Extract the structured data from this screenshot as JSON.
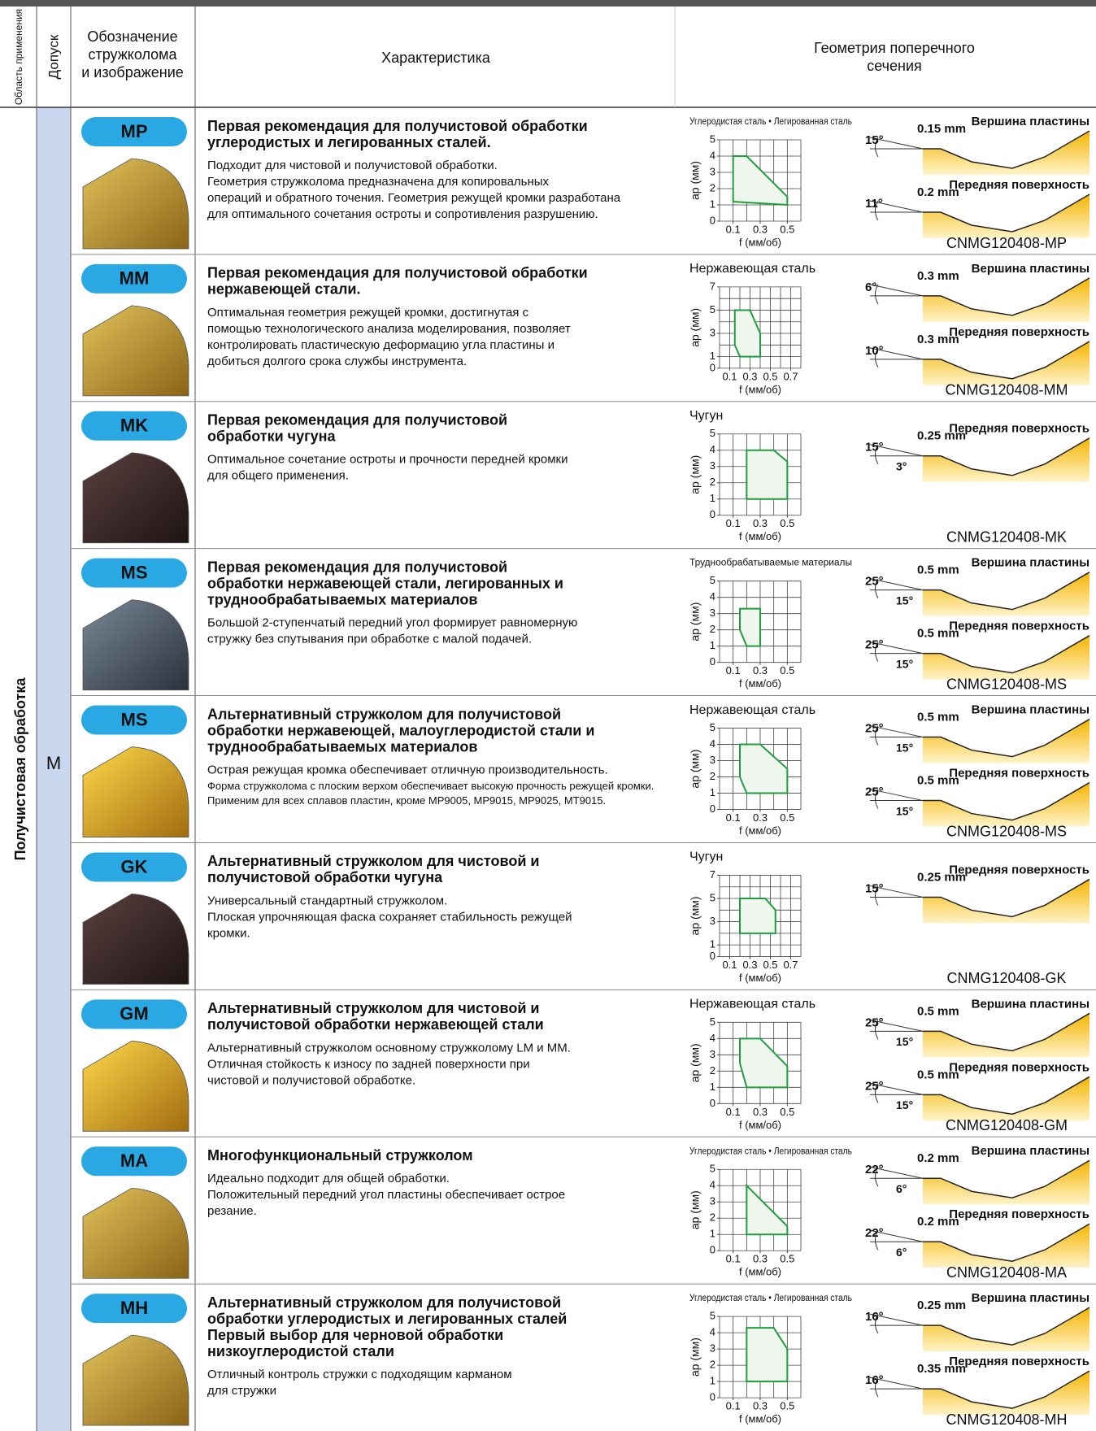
{
  "header": {
    "area": "Область применения",
    "tolerance": "Допуск",
    "designation": [
      "Обозначение",
      "стружколома",
      "и изображение"
    ],
    "characteristic": "Характеристика",
    "geometry": [
      "Геометрия поперечного",
      "сечения"
    ]
  },
  "area": "Получистовая обработка",
  "tolerance": "M",
  "rows": [
    {
      "code": "MP",
      "title": [
        "Первая рекомендация для получистовой обработки",
        "углеродистых и легированных сталей."
      ],
      "description": [
        "Подходит для чистовой и получистовой обработки.",
        "Геометрия стружколома предназначена для копировальных",
        "операций и обратного точения. Геометрия режущей кромки разработана",
        "для оптимального сочетания остроты и сопротивления разрушению."
      ],
      "chart": {
        "material": "Углеродистая сталь • Легированная сталь",
        "ylabel": "ap (мм)",
        "xlabel": "f (мм/об)",
        "xlim": [
          0,
          0.6
        ],
        "ylim": [
          0,
          5
        ],
        "xticks": [
          0.1,
          0.3,
          0.5
        ],
        "yticks": [
          0,
          1,
          2,
          3,
          4,
          5
        ],
        "region_f": [
          0.1,
          0.2,
          0.5,
          0.5,
          0.1
        ],
        "region_ap": [
          4,
          4,
          1.5,
          1,
          1.2
        ]
      },
      "geometry": {
        "sections": [
          {
            "title": "Вершина пластины",
            "angle": "15°",
            "land": "0.15 mm"
          },
          {
            "title": "Передняя поверхность",
            "angle": "11°",
            "land": "0.2 mm"
          }
        ],
        "part": "CNMG120408-MP"
      }
    },
    {
      "code": "MM",
      "title": [
        "Первая рекомендация для получистовой обработки",
        "нержавеющей стали."
      ],
      "description": [
        "Оптимальная геометрия режущей кромки, достигнутая с",
        "помощью технологического анализа моделирования, позволяет",
        "контролировать пластическую деформацию угла пластины и",
        "добиться долгого срока службы инструмента."
      ],
      "chart": {
        "material": "Нержавеющая сталь",
        "ylabel": "ap (мм)",
        "xlabel": "f (мм/об)",
        "xlim": [
          0,
          0.8
        ],
        "ylim": [
          0,
          7
        ],
        "xticks": [
          0.1,
          0.3,
          0.5,
          0.7
        ],
        "yticks": [
          0,
          1,
          3,
          5,
          7
        ],
        "region_f": [
          0.15,
          0.3,
          0.4,
          0.4,
          0.2,
          0.15
        ],
        "region_ap": [
          5,
          5,
          3,
          1,
          1,
          2
        ]
      },
      "geometry": {
        "sections": [
          {
            "title": "Вершина пластины",
            "angle": "6°",
            "land": "0.3 mm"
          },
          {
            "title": "Передняя поверхность",
            "angle": "10°",
            "land": "0.3 mm"
          }
        ],
        "part": "CNMG120408-MM"
      }
    },
    {
      "code": "MK",
      "title": [
        "Первая рекомендация для получистовой",
        "обработки чугуна"
      ],
      "description": [
        "Оптимальное сочетание остроты и прочности передней кромки",
        "для общего применения."
      ],
      "chart": {
        "material": "Чугун",
        "ylabel": "ap (мм)",
        "xlabel": "f (мм/об)",
        "xlim": [
          0,
          0.6
        ],
        "ylim": [
          0,
          5
        ],
        "xticks": [
          0.1,
          0.3,
          0.5
        ],
        "yticks": [
          0,
          1,
          2,
          3,
          4,
          5
        ],
        "region_f": [
          0.2,
          0.4,
          0.5,
          0.5,
          0.2
        ],
        "region_ap": [
          4,
          4,
          3.3,
          1,
          1
        ]
      },
      "geometry": {
        "sections": [
          {
            "title": "Передняя поверхность",
            "angle": "15°",
            "land": "0.25 mm",
            "angle2": "3°"
          }
        ],
        "part": "CNMG120408-MK"
      }
    },
    {
      "code": "MS",
      "title": [
        "Первая рекомендация для получистовой",
        "обработки нержавеющей стали, легированных и",
        "труднообрабатываемых материалов"
      ],
      "description": [
        "Большой 2-ступенчатый передний угол формирует равномерную",
        "стружку без спутывания при обработке с малой подачей."
      ],
      "chart": {
        "material": "Труднообрабатываемые материалы",
        "ylabel": "ap (мм)",
        "xlabel": "f (мм/об)",
        "xlim": [
          0,
          0.6
        ],
        "ylim": [
          0,
          5
        ],
        "xticks": [
          0.1,
          0.3,
          0.5
        ],
        "yticks": [
          0,
          1,
          2,
          3,
          4,
          5
        ],
        "region_f": [
          0.15,
          0.3,
          0.3,
          0.2,
          0.15
        ],
        "region_ap": [
          3.3,
          3.3,
          1,
          1,
          2
        ]
      },
      "geometry": {
        "sections": [
          {
            "title": "Вершина пластины",
            "angle": "25°",
            "land": "0.5 mm",
            "angle2": "15°"
          },
          {
            "title": "Передняя поверхность",
            "angle": "25°",
            "land": "0.5 mm",
            "angle2": "15°"
          }
        ],
        "part": "CNMG120408-MS"
      }
    },
    {
      "code": "MS",
      "title": [
        "Альтернативный стружколом для получистовой",
        "обработки нержавеющей, малоуглеродистой стали и",
        "труднообрабатываемых материалов"
      ],
      "description": [
        "Острая режущая кромка обеспечивает отличную производительность.",
        "Форма стружколома с плоским верхом обеспечивает высокую прочность режущей кромки.",
        "Применим для всех сплавов пластин, кроме MP9005, MP9015, MP9025, MT9015."
      ],
      "chart": {
        "material": "Нержавеющая сталь",
        "ylabel": "ap (мм)",
        "xlabel": "f (мм/об)",
        "xlim": [
          0,
          0.6
        ],
        "ylim": [
          0,
          5
        ],
        "xticks": [
          0.1,
          0.3,
          0.5
        ],
        "yticks": [
          0,
          1,
          2,
          3,
          4,
          5
        ],
        "region_f": [
          0.15,
          0.3,
          0.5,
          0.5,
          0.2,
          0.15
        ],
        "region_ap": [
          4,
          4,
          2.5,
          1,
          1,
          2
        ]
      },
      "geometry": {
        "sections": [
          {
            "title": "Вершина пластины",
            "angle": "25°",
            "land": "0.5 mm",
            "angle2": "15°"
          },
          {
            "title": "Передняя поверхность",
            "angle": "25°",
            "land": "0.5 mm",
            "angle2": "15°"
          }
        ],
        "part": "CNMG120408-MS"
      }
    },
    {
      "code": "GK",
      "title": [
        "Альтернативный стружколом для чистовой и",
        "получистовой обработки чугуна"
      ],
      "description": [
        "Универсальный стандартный стружколом.",
        "Плоская упрочняющая фаска сохраняет стабильность режущей",
        "кромки."
      ],
      "chart": {
        "material": "Чугун",
        "ylabel": "ap (мм)",
        "xlabel": "f (мм/об)",
        "xlim": [
          0,
          0.8
        ],
        "ylim": [
          0,
          7
        ],
        "xticks": [
          0.1,
          0.3,
          0.5,
          0.7
        ],
        "yticks": [
          0,
          1,
          3,
          5,
          7
        ],
        "region_f": [
          0.2,
          0.45,
          0.55,
          0.55,
          0.2
        ],
        "region_ap": [
          5,
          5,
          4,
          2,
          2
        ]
      },
      "geometry": {
        "sections": [
          {
            "title": "Передняя поверхность",
            "angle": "15°",
            "land": "0.25 mm"
          }
        ],
        "part": "CNMG120408-GK"
      }
    },
    {
      "code": "GM",
      "title": [
        "Альтернативный стружколом для чистовой и",
        "получистовой обработки нержавеющей стали"
      ],
      "description": [
        "Альтернативный стружколом основному стружколому LM и MM.",
        "Отличная стойкость к износу по задней поверхности при",
        "чистовой и получистовой обработке."
      ],
      "chart": {
        "material": "Нержавеющая сталь",
        "ylabel": "ap (мм)",
        "xlabel": "f (мм/об)",
        "xlim": [
          0,
          0.6
        ],
        "ylim": [
          0,
          5
        ],
        "xticks": [
          0.1,
          0.3,
          0.5
        ],
        "yticks": [
          0,
          1,
          2,
          3,
          4,
          5
        ],
        "region_f": [
          0.15,
          0.3,
          0.5,
          0.5,
          0.2,
          0.15
        ],
        "region_ap": [
          4,
          4,
          2.3,
          1,
          1,
          2.5
        ]
      },
      "geometry": {
        "sections": [
          {
            "title": "Вершина пластины",
            "angle": "25°",
            "land": "0.5 mm",
            "angle2": "15°"
          },
          {
            "title": "Передняя поверхность",
            "angle": "25°",
            "land": "0.5 mm",
            "angle2": "15°"
          }
        ],
        "part": "CNMG120408-GM"
      }
    },
    {
      "code": "MA",
      "title": [
        "Многофункциональный стружколом"
      ],
      "description": [
        "Идеально подходит для общей обработки.",
        "Положительный передний угол пластины обеспечивает острое",
        "резание."
      ],
      "chart": {
        "material": "Углеродистая сталь • Легированная сталь",
        "ylabel": "ap (мм)",
        "xlabel": "f (мм/об)",
        "xlim": [
          0,
          0.6
        ],
        "ylim": [
          0,
          5
        ],
        "xticks": [
          0.1,
          0.3,
          0.5
        ],
        "yticks": [
          0,
          1,
          2,
          3,
          4,
          5
        ],
        "region_f": [
          0.2,
          0.5,
          0.5,
          0.2
        ],
        "region_ap": [
          4,
          1.5,
          1,
          1
        ]
      },
      "geometry": {
        "sections": [
          {
            "title": "Вершина пластины",
            "angle": "22°",
            "land": "0.2 mm",
            "angle2": "6°"
          },
          {
            "title": "Передняя поверхность",
            "angle": "22°",
            "land": "0.2 mm",
            "angle2": "6°"
          }
        ],
        "part": "CNMG120408-MA"
      }
    },
    {
      "code": "MH",
      "title": [
        "Альтернативный стружколом для получистовой",
        "обработки углеродистых и легированных сталей",
        "Первый выбор для черновой обработки",
        "низкоуглеродистой стали"
      ],
      "description": [
        "Отличный контроль стружки с подходящим карманом",
        "для стружки"
      ],
      "chart": {
        "material": "Углеродистая сталь • Легированная сталь",
        "ylabel": "ap (мм)",
        "xlabel": "f (мм/об)",
        "xlim": [
          0,
          0.6
        ],
        "ylim": [
          0,
          5
        ],
        "xticks": [
          0.1,
          0.3,
          0.5
        ],
        "yticks": [
          0,
          1,
          2,
          3,
          4,
          5
        ],
        "region_f": [
          0.2,
          0.4,
          0.5,
          0.5,
          0.2
        ],
        "region_ap": [
          4.3,
          4.3,
          3,
          1,
          1
        ]
      },
      "geometry": {
        "sections": [
          {
            "title": "Вершина пластины",
            "angle": "16°",
            "land": "0.25 mm"
          },
          {
            "title": "Передняя поверхность",
            "angle": "16°",
            "land": "0.35 mm"
          }
        ],
        "part": "CNMG120408-MH"
      }
    }
  ]
}
